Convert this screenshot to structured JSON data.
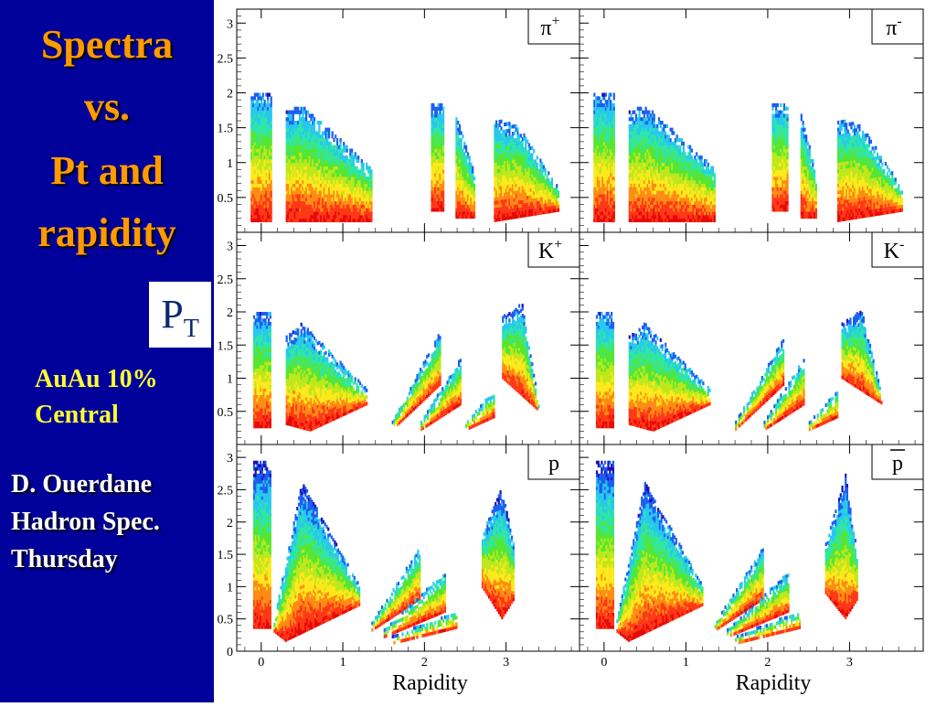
{
  "sidebar": {
    "title_lines": [
      "Spectra",
      "vs.",
      "Pt and",
      "rapidity"
    ],
    "pt_main": "P",
    "pt_sub": "T",
    "system_lines": [
      "AuAu 10%",
      "Central"
    ],
    "author_lines": [
      "D. Ouerdane",
      "Hadron Spec.",
      "Thursday"
    ]
  },
  "colors": {
    "sidebar_bg": "#00009a",
    "title": "#ff9a00",
    "system_text": "#ffff33",
    "author_text": "#ffffff",
    "pt_text": "#0a2a73",
    "colormap": [
      "#1a0fb8",
      "#1d5ef0",
      "#28c8ee",
      "#2ee6a8",
      "#56e632",
      "#bde81c",
      "#ffe81c",
      "#ff8c14",
      "#ff3818",
      "#e60a0a"
    ]
  },
  "chart_data": {
    "type": "heatmap",
    "layout": "3 rows x 2 columns",
    "xlabel": "Rapidity",
    "ylabel": "",
    "xlim": [
      -0.3,
      3.9
    ],
    "ylim": [
      0,
      3.2
    ],
    "x_ticks": [
      "0",
      "1",
      "2",
      "3"
    ],
    "y_ticks": [
      "0.5",
      "1",
      "1.5",
      "2",
      "2.5",
      "3"
    ],
    "y_ticks_bottom_row": [
      "0",
      "0.5",
      "1",
      "1.5",
      "2",
      "2.5",
      "3"
    ],
    "panels": [
      {
        "id": "pi-plus",
        "label": "π⁺",
        "label_main": "π",
        "label_sup": "+",
        "bar": false,
        "row": 0,
        "col": 0,
        "regions": [
          {
            "x": [
              -0.13,
              0.13
            ],
            "pt": [
              0.15,
              2.0
            ]
          },
          {
            "x": [
              0.3,
              1.35
            ],
            "pt": [
              0.15,
              1.8
            ],
            "top": [
              [
                0.3,
                1.7
              ],
              [
                0.5,
                1.8
              ],
              [
                1.35,
                0.9
              ]
            ]
          },
          {
            "x": [
              2.08,
              2.23
            ],
            "pt": [
              0.3,
              1.85
            ]
          },
          {
            "x": [
              2.38,
              2.62
            ],
            "pt": [
              0.2,
              1.7
            ],
            "top": [
              [
                2.38,
                1.7
              ],
              [
                2.62,
                0.8
              ]
            ]
          },
          {
            "x": [
              2.85,
              3.65
            ],
            "pt": [
              0.15,
              1.6
            ],
            "top": [
              [
                2.85,
                1.6
              ],
              [
                3.15,
                1.5
              ],
              [
                3.65,
                0.6
              ]
            ],
            "bottom": [
              [
                2.85,
                0.15
              ],
              [
                3.65,
                0.3
              ]
            ]
          }
        ]
      },
      {
        "id": "pi-minus",
        "label": "π⁻",
        "label_main": "π",
        "label_sup": "-",
        "bar": false,
        "row": 0,
        "col": 1,
        "regions": [
          {
            "x": [
              -0.13,
              0.13
            ],
            "pt": [
              0.15,
              2.0
            ]
          },
          {
            "x": [
              0.3,
              1.35
            ],
            "pt": [
              0.15,
              1.8
            ],
            "top": [
              [
                0.3,
                1.7
              ],
              [
                0.5,
                1.8
              ],
              [
                1.35,
                0.9
              ]
            ]
          },
          {
            "x": [
              2.05,
              2.25
            ],
            "pt": [
              0.3,
              1.85
            ]
          },
          {
            "x": [
              2.4,
              2.6
            ],
            "pt": [
              0.2,
              1.7
            ],
            "top": [
              [
                2.4,
                1.7
              ],
              [
                2.6,
                0.8
              ]
            ]
          },
          {
            "x": [
              2.85,
              3.65
            ],
            "pt": [
              0.15,
              1.6
            ],
            "top": [
              [
                2.85,
                1.6
              ],
              [
                3.15,
                1.5
              ],
              [
                3.65,
                0.6
              ]
            ],
            "bottom": [
              [
                2.85,
                0.15
              ],
              [
                3.65,
                0.3
              ]
            ]
          }
        ]
      },
      {
        "id": "k-plus",
        "label": "K⁺",
        "label_main": "K",
        "label_sup": "+",
        "bar": false,
        "row": 1,
        "col": 0,
        "regions": [
          {
            "x": [
              -0.1,
              0.12
            ],
            "pt": [
              0.25,
              2.0
            ]
          },
          {
            "x": [
              0.3,
              1.3
            ],
            "pt": [
              0.2,
              1.8
            ],
            "top": [
              [
                0.3,
                1.6
              ],
              [
                0.5,
                1.8
              ],
              [
                1.3,
                0.8
              ]
            ],
            "bottom": [
              [
                0.3,
                0.3
              ],
              [
                0.6,
                0.2
              ],
              [
                1.3,
                0.6
              ]
            ]
          },
          {
            "x": [
              1.6,
              2.2
            ],
            "pt": [
              0.2,
              1.7
            ],
            "top": [
              [
                1.6,
                0.3
              ],
              [
                2.2,
                1.7
              ]
            ],
            "bottom": [
              [
                1.6,
                0.2
              ],
              [
                2.2,
                0.9
              ]
            ]
          },
          {
            "x": [
              1.95,
              2.45
            ],
            "pt": [
              0.2,
              1.3
            ],
            "top": [
              [
                1.95,
                0.3
              ],
              [
                2.45,
                1.3
              ]
            ],
            "bottom": [
              [
                1.95,
                0.2
              ],
              [
                2.45,
                0.6
              ]
            ]
          },
          {
            "x": [
              2.5,
              2.85
            ],
            "pt": [
              0.2,
              0.8
            ],
            "top": [
              [
                2.5,
                0.3
              ],
              [
                2.85,
                0.8
              ]
            ],
            "bottom": [
              [
                2.5,
                0.2
              ],
              [
                2.85,
                0.4
              ]
            ]
          },
          {
            "x": [
              2.95,
              3.4
            ],
            "pt": [
              0.5,
              2.1
            ],
            "top": [
              [
                2.95,
                1.9
              ],
              [
                3.2,
                2.1
              ],
              [
                3.4,
                0.6
              ]
            ],
            "bottom": [
              [
                2.95,
                1.0
              ],
              [
                3.4,
                0.5
              ]
            ]
          }
        ]
      },
      {
        "id": "k-minus",
        "label": "K⁻",
        "label_main": "K",
        "label_sup": "-",
        "bar": false,
        "row": 1,
        "col": 1,
        "regions": [
          {
            "x": [
              -0.1,
              0.12
            ],
            "pt": [
              0.25,
              2.0
            ]
          },
          {
            "x": [
              0.3,
              1.3
            ],
            "pt": [
              0.2,
              1.8
            ],
            "top": [
              [
                0.3,
                1.6
              ],
              [
                0.5,
                1.8
              ],
              [
                1.3,
                0.8
              ]
            ],
            "bottom": [
              [
                0.3,
                0.3
              ],
              [
                0.6,
                0.2
              ],
              [
                1.3,
                0.6
              ]
            ]
          },
          {
            "x": [
              1.6,
              2.2
            ],
            "pt": [
              0.2,
              1.6
            ],
            "top": [
              [
                1.6,
                0.3
              ],
              [
                2.2,
                1.6
              ]
            ],
            "bottom": [
              [
                1.6,
                0.2
              ],
              [
                2.2,
                0.9
              ]
            ]
          },
          {
            "x": [
              1.95,
              2.45
            ],
            "pt": [
              0.2,
              1.3
            ],
            "top": [
              [
                1.95,
                0.3
              ],
              [
                2.45,
                1.3
              ]
            ],
            "bottom": [
              [
                1.95,
                0.2
              ],
              [
                2.45,
                0.6
              ]
            ]
          },
          {
            "x": [
              2.5,
              2.85
            ],
            "pt": [
              0.2,
              0.8
            ],
            "top": [
              [
                2.5,
                0.3
              ],
              [
                2.85,
                0.8
              ]
            ],
            "bottom": [
              [
                2.5,
                0.2
              ],
              [
                2.85,
                0.4
              ]
            ]
          },
          {
            "x": [
              2.9,
              3.4
            ],
            "pt": [
              0.6,
              2.0
            ],
            "top": [
              [
                2.9,
                1.8
              ],
              [
                3.15,
                2.0
              ],
              [
                3.4,
                0.7
              ]
            ],
            "bottom": [
              [
                2.9,
                1.0
              ],
              [
                3.4,
                0.6
              ]
            ]
          }
        ]
      },
      {
        "id": "proton",
        "label": "p",
        "label_main": "p",
        "label_sup": "",
        "bar": false,
        "row": 2,
        "col": 0,
        "regions": [
          {
            "x": [
              -0.1,
              0.12
            ],
            "pt": [
              0.35,
              2.9
            ]
          },
          {
            "x": [
              0.15,
              1.2
            ],
            "pt": [
              0.15,
              2.6
            ],
            "top": [
              [
                0.15,
                0.4
              ],
              [
                0.5,
                2.6
              ],
              [
                1.2,
                1.0
              ]
            ],
            "bottom": [
              [
                0.15,
                0.3
              ],
              [
                0.3,
                0.15
              ],
              [
                1.2,
                0.7
              ]
            ]
          },
          {
            "x": [
              1.35,
              1.95
            ],
            "pt": [
              0.2,
              1.6
            ],
            "top": [
              [
                1.35,
                0.4
              ],
              [
                1.95,
                1.6
              ]
            ],
            "bottom": [
              [
                1.35,
                0.3
              ],
              [
                1.95,
                0.8
              ]
            ]
          },
          {
            "x": [
              1.5,
              2.25
            ],
            "pt": [
              0.2,
              1.2
            ],
            "top": [
              [
                1.5,
                0.3
              ],
              [
                2.25,
                1.2
              ]
            ],
            "bottom": [
              [
                1.5,
                0.2
              ],
              [
                2.25,
                0.6
              ]
            ]
          },
          {
            "x": [
              1.6,
              2.4
            ],
            "pt": [
              0.1,
              0.6
            ],
            "top": [
              [
                1.6,
                0.2
              ],
              [
                2.4,
                0.6
              ]
            ],
            "bottom": [
              [
                1.6,
                0.1
              ],
              [
                2.4,
                0.35
              ]
            ]
          },
          {
            "x": [
              2.7,
              3.1
            ],
            "pt": [
              0.5,
              2.5
            ],
            "top": [
              [
                2.7,
                1.8
              ],
              [
                2.95,
                2.5
              ],
              [
                3.1,
                1.6
              ]
            ],
            "bottom": [
              [
                2.7,
                1.0
              ],
              [
                2.95,
                0.5
              ],
              [
                3.1,
                0.8
              ]
            ]
          }
        ]
      },
      {
        "id": "antiproton",
        "label": "p̄",
        "label_main": "p",
        "label_sup": "",
        "bar": true,
        "row": 2,
        "col": 1,
        "regions": [
          {
            "x": [
              -0.1,
              0.12
            ],
            "pt": [
              0.35,
              2.9
            ]
          },
          {
            "x": [
              0.15,
              1.2
            ],
            "pt": [
              0.15,
              2.6
            ],
            "top": [
              [
                0.15,
                0.4
              ],
              [
                0.5,
                2.6
              ],
              [
                1.2,
                1.0
              ]
            ],
            "bottom": [
              [
                0.15,
                0.3
              ],
              [
                0.3,
                0.15
              ],
              [
                1.2,
                0.7
              ]
            ]
          },
          {
            "x": [
              1.35,
              1.95
            ],
            "pt": [
              0.2,
              1.6
            ],
            "top": [
              [
                1.35,
                0.4
              ],
              [
                1.95,
                1.6
              ]
            ],
            "bottom": [
              [
                1.35,
                0.3
              ],
              [
                1.95,
                0.8
              ]
            ]
          },
          {
            "x": [
              1.5,
              2.25
            ],
            "pt": [
              0.2,
              1.2
            ],
            "top": [
              [
                1.5,
                0.3
              ],
              [
                2.25,
                1.2
              ]
            ],
            "bottom": [
              [
                1.5,
                0.2
              ],
              [
                2.25,
                0.6
              ]
            ]
          },
          {
            "x": [
              1.6,
              2.4
            ],
            "pt": [
              0.1,
              0.6
            ],
            "top": [
              [
                1.6,
                0.2
              ],
              [
                2.4,
                0.6
              ]
            ],
            "bottom": [
              [
                1.6,
                0.1
              ],
              [
                2.4,
                0.35
              ]
            ]
          },
          {
            "x": [
              2.7,
              3.1
            ],
            "pt": [
              0.5,
              2.7
            ],
            "top": [
              [
                2.7,
                1.6
              ],
              [
                2.95,
                2.7
              ],
              [
                3.1,
                1.5
              ]
            ],
            "bottom": [
              [
                2.7,
                0.9
              ],
              [
                2.95,
                0.5
              ],
              [
                3.1,
                0.8
              ]
            ]
          }
        ]
      }
    ]
  }
}
